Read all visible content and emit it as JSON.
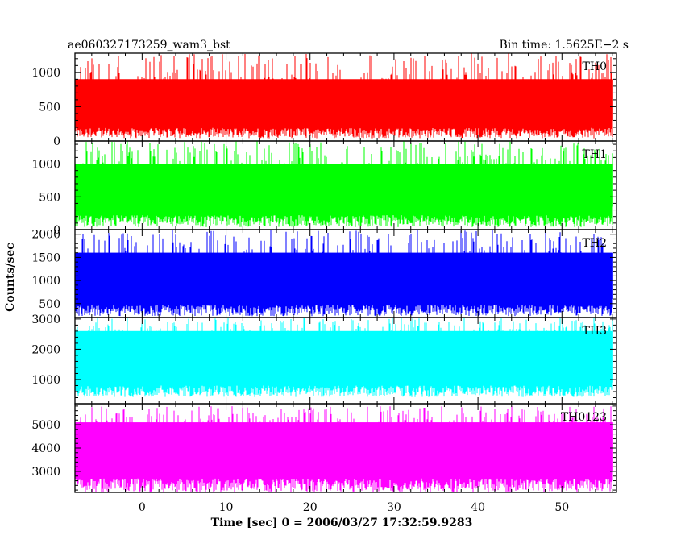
{
  "chart_data": {
    "type": "line",
    "title": "ae060327173259_wam3_bst",
    "bin_time_label": "Bin time: 1.5625E−2 s",
    "xlabel": "Time [sec] 0 = 2006/03/27 17:32:59.9283",
    "ylabel": "Counts/sec",
    "xlim": [
      -8,
      56.5
    ],
    "xticks": [
      0,
      10,
      20,
      30,
      40,
      50
    ],
    "data_x_range": [
      -7.9,
      56.1
    ],
    "grid": false,
    "panels": [
      {
        "name": "TH0",
        "color": "#ff0000",
        "ylim": [
          0,
          1280
        ],
        "yticks": [
          0,
          500,
          1000
        ],
        "baseline": 550,
        "envelope_low": [
          40,
          190
        ],
        "envelope_high": [
          900,
          1280
        ],
        "typical_range": [
          300,
          900
        ]
      },
      {
        "name": "TH1",
        "color": "#00ff00",
        "ylim": [
          0,
          1350
        ],
        "yticks": [
          0,
          500,
          1000
        ],
        "baseline": 650,
        "envelope_low": [
          40,
          220
        ],
        "envelope_high": [
          1000,
          1350
        ],
        "typical_range": [
          350,
          1000
        ]
      },
      {
        "name": "TH2",
        "color": "#0000ff",
        "ylim": [
          200,
          2100
        ],
        "yticks": [
          500,
          1000,
          1500,
          2000
        ],
        "baseline": 1050,
        "envelope_low": [
          230,
          480
        ],
        "envelope_high": [
          1600,
          2100
        ],
        "typical_range": [
          600,
          1600
        ]
      },
      {
        "name": "TH3",
        "color": "#00ffff",
        "ylim": [
          200,
          3050
        ],
        "yticks": [
          1000,
          2000,
          3000
        ],
        "baseline": 1600,
        "envelope_low": [
          420,
          800
        ],
        "envelope_high": [
          2600,
          3050
        ],
        "typical_range": [
          900,
          2600
        ]
      },
      {
        "name": "TH0123",
        "color": "#ff00ff",
        "ylim": [
          2100,
          5900
        ],
        "yticks": [
          3000,
          4000,
          5000
        ],
        "baseline": 3900,
        "envelope_low": [
          2100,
          2700
        ],
        "envelope_high": [
          5100,
          5800
        ],
        "typical_range": [
          3000,
          5100
        ]
      }
    ]
  }
}
